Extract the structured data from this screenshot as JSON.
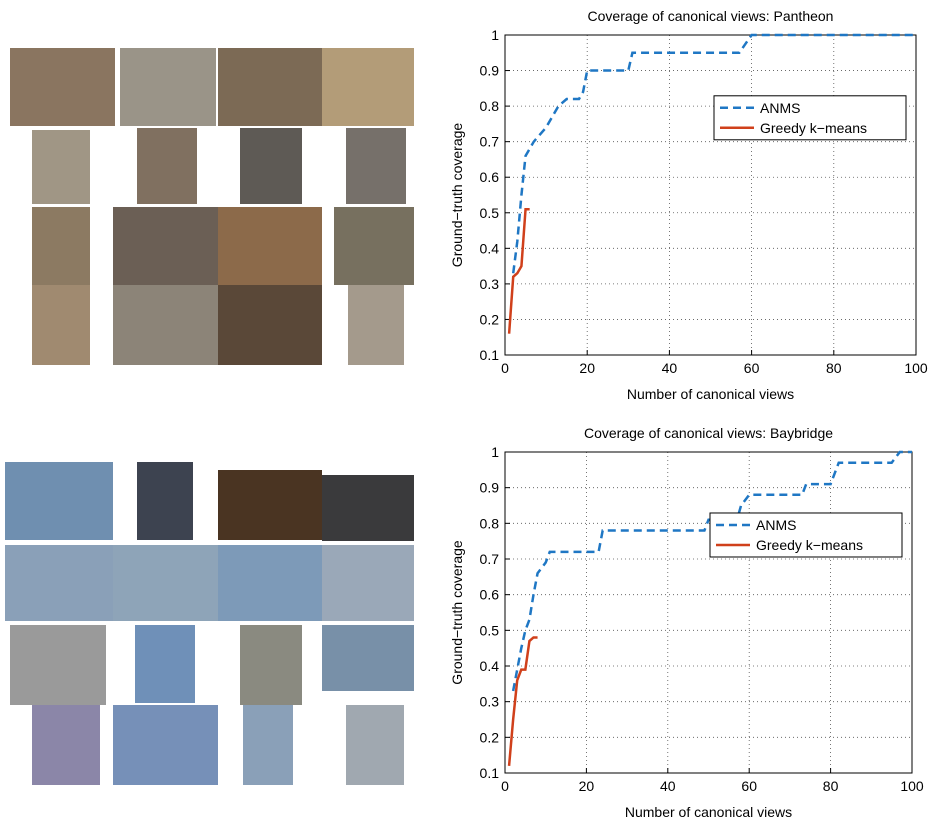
{
  "chart_data": [
    {
      "type": "line",
      "title": "Coverage of canonical views: Pantheon",
      "x_label": "Number of canonical views",
      "y_label": "Ground−truth coverage",
      "xlim": [
        0,
        100
      ],
      "ylim": [
        0.1,
        1
      ],
      "xticks": [
        0,
        20,
        40,
        60,
        80,
        100
      ],
      "yticks": [
        0.1,
        0.2,
        0.3,
        0.4,
        0.5,
        0.6,
        0.7,
        0.8,
        0.9,
        1
      ],
      "grid": true,
      "legend": "right",
      "series": [
        {
          "name": "ANMS",
          "color": "#1f77c4",
          "linestyle": "dashed",
          "x": [
            2,
            3,
            4,
            5,
            7,
            10,
            13,
            15,
            18,
            19,
            20,
            30,
            31,
            57,
            60,
            100
          ],
          "values": [
            0.33,
            0.42,
            0.55,
            0.66,
            0.7,
            0.74,
            0.8,
            0.82,
            0.82,
            0.84,
            0.9,
            0.9,
            0.95,
            0.95,
            1,
            1
          ]
        },
        {
          "name": "Greedy k−means",
          "color": "#d0401b",
          "linestyle": "solid",
          "x": [
            1,
            2,
            3,
            4,
            5,
            6
          ],
          "values": [
            0.16,
            0.32,
            0.33,
            0.35,
            0.51,
            0.51
          ]
        }
      ]
    },
    {
      "type": "line",
      "title": "Coverage of canonical views: Baybridge",
      "x_label": "Number of canonical views",
      "y_label": "Ground−truth coverage",
      "xlim": [
        0,
        100
      ],
      "ylim": [
        0.1,
        1
      ],
      "xticks": [
        0,
        20,
        40,
        60,
        80,
        100
      ],
      "yticks": [
        0.1,
        0.2,
        0.3,
        0.4,
        0.5,
        0.6,
        0.7,
        0.8,
        0.9,
        1
      ],
      "grid": true,
      "legend": "right",
      "series": [
        {
          "name": "ANMS",
          "color": "#1f77c4",
          "linestyle": "dashed",
          "x": [
            2,
            3,
            4,
            5,
            6,
            7,
            8,
            10,
            11,
            23,
            24,
            49,
            50,
            57,
            58,
            60,
            73,
            74,
            80,
            82,
            95,
            97,
            100
          ],
          "values": [
            0.33,
            0.39,
            0.45,
            0.5,
            0.53,
            0.6,
            0.66,
            0.69,
            0.72,
            0.72,
            0.78,
            0.78,
            0.81,
            0.81,
            0.85,
            0.88,
            0.88,
            0.91,
            0.91,
            0.97,
            0.97,
            1,
            1
          ]
        },
        {
          "name": "Greedy k−means",
          "color": "#d0401b",
          "linestyle": "solid",
          "x": [
            1,
            2,
            3,
            4,
            5,
            6,
            7,
            8
          ],
          "values": [
            0.12,
            0.25,
            0.36,
            0.39,
            0.39,
            0.47,
            0.48,
            0.48
          ]
        }
      ]
    }
  ]
}
